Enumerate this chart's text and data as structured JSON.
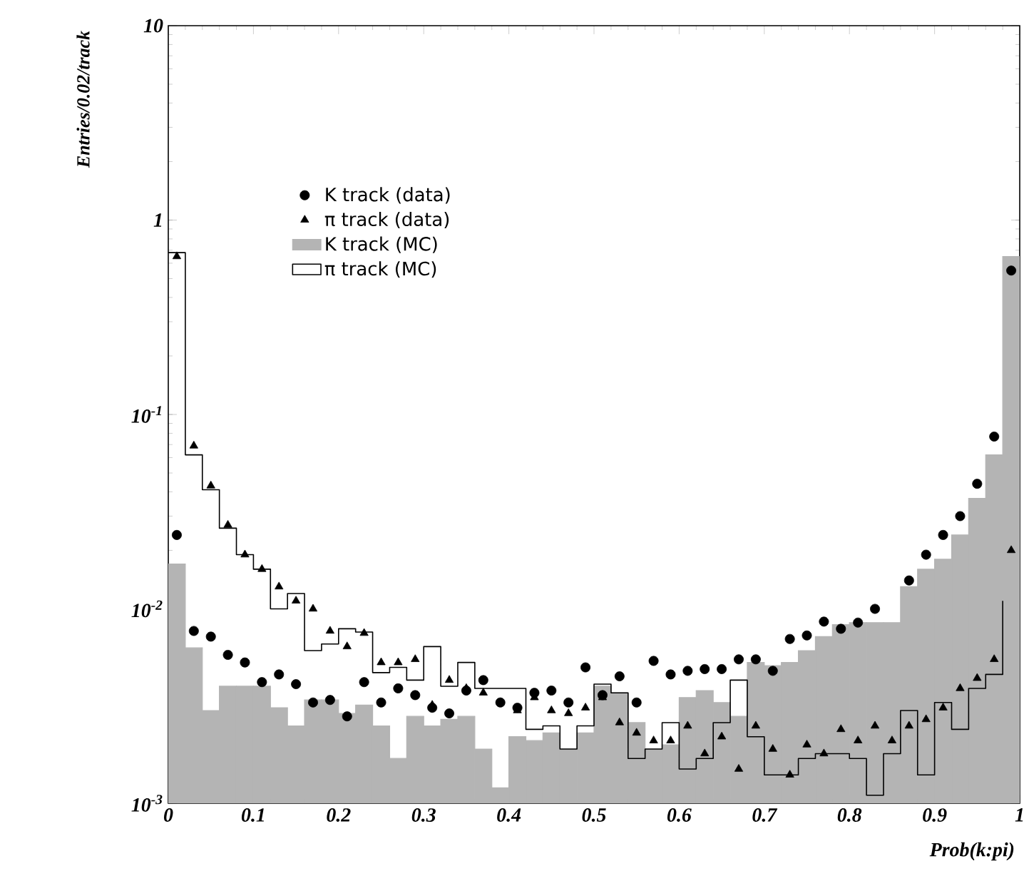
{
  "chart_data": {
    "type": "histogram",
    "xlabel": "Prob(k:pi)",
    "ylabel": "Entries/0.02/track",
    "log": true,
    "legend": "top left",
    "grid": false,
    "xlim": [
      0,
      1
    ],
    "ylim": [
      0.001,
      10
    ],
    "xticks": [
      0,
      0.1,
      0.2,
      0.3,
      0.4,
      0.5,
      0.6,
      0.7,
      0.8,
      0.9,
      1
    ],
    "yticks": [
      {
        "value": 0.001,
        "label": "10$^{-3}$"
      },
      {
        "value": 0.01,
        "label": "10$^{-2}$"
      },
      {
        "value": 0.1,
        "label": "10$^{-1}$"
      },
      1,
      10
    ],
    "bins": [
      0,
      0.02,
      0.04,
      0.06,
      0.08,
      0.1,
      0.12,
      0.14,
      0.16,
      0.18,
      0.2,
      0.22,
      0.24,
      0.26,
      0.28,
      0.3,
      0.32,
      0.34,
      0.36,
      0.38,
      0.4,
      0.42,
      0.44,
      0.46,
      0.48,
      0.5,
      0.52,
      0.54,
      0.56,
      0.58,
      0.6,
      0.62,
      0.64,
      0.66,
      0.68,
      0.7,
      0.72,
      0.74,
      0.76,
      0.78,
      0.8,
      0.82,
      0.84,
      0.86,
      0.88,
      0.9,
      0.92,
      0.94,
      0.96,
      0.98,
      1
    ],
    "series": [
      {
        "name": "K track (data)",
        "type": "scatter",
        "marker": "circle",
        "color": "#000000",
        "x": [
          0.01,
          0.03,
          0.05,
          0.07,
          0.09,
          0.11,
          0.13,
          0.15,
          0.17,
          0.19,
          0.21,
          0.23,
          0.25,
          0.27,
          0.29,
          0.31,
          0.33,
          0.35,
          0.37,
          0.39,
          0.41,
          0.43,
          0.45,
          0.47,
          0.49,
          0.51,
          0.53,
          0.55,
          0.57,
          0.59,
          0.61,
          0.63,
          0.65,
          0.67,
          0.69,
          0.71,
          0.73,
          0.75,
          0.77,
          0.79,
          0.81,
          0.83,
          0.85,
          0.87,
          0.89,
          0.91,
          0.93,
          0.95,
          0.97,
          0.99
        ],
        "values": [
          0.024,
          0.0077,
          0.0072,
          0.0058,
          0.0053,
          0.0042,
          0.0046,
          0.0041,
          0.0033,
          0.0034,
          0.0028,
          0.0042,
          0.0033,
          0.0039,
          0.0036,
          0.0031,
          0.0029,
          0.0038,
          0.0043,
          0.0033,
          0.0031,
          0.0037,
          0.0038,
          0.0033,
          0.005,
          0.0036,
          0.0045,
          0.0033,
          0.0054,
          0.0046,
          0.0048,
          0.0049,
          0.0049,
          0.0055,
          0.0055,
          0.0048,
          0.007,
          0.0073,
          0.0086,
          0.0079,
          0.0085,
          0.01,
          null,
          0.014,
          0.019,
          0.024,
          0.03,
          0.044,
          0.077,
          0.55
        ]
      },
      {
        "name": "π track (data)",
        "type": "scatter",
        "marker": "triangle",
        "color": "#000000",
        "x": [
          0.01,
          0.03,
          0.05,
          0.07,
          0.09,
          0.11,
          0.13,
          0.15,
          0.17,
          0.19,
          0.21,
          0.23,
          0.25,
          0.27,
          0.29,
          0.31,
          0.33,
          0.35,
          0.37,
          0.39,
          0.41,
          0.43,
          0.45,
          0.47,
          0.49,
          0.51,
          0.53,
          0.55,
          0.57,
          0.59,
          0.61,
          0.63,
          0.65,
          0.67,
          0.69,
          0.71,
          0.73,
          0.75,
          0.77,
          0.79,
          0.81,
          0.83,
          0.85,
          0.87,
          0.89,
          0.91,
          0.93,
          0.95,
          0.97,
          0.99
        ],
        "values": [
          0.65,
          0.069,
          0.043,
          0.027,
          0.019,
          0.016,
          0.013,
          0.011,
          0.01,
          0.0077,
          0.0064,
          0.0075,
          0.0053,
          0.0053,
          0.0055,
          0.0032,
          0.0043,
          0.0039,
          0.0037,
          0.0033,
          0.003,
          0.0035,
          0.003,
          0.0029,
          0.0031,
          0.0035,
          0.0026,
          0.0023,
          0.0021,
          0.0021,
          0.0025,
          0.0018,
          0.0022,
          0.0015,
          0.0025,
          0.0019,
          0.0014,
          0.002,
          0.0018,
          0.0024,
          0.0021,
          0.0025,
          0.0021,
          0.0025,
          0.0027,
          0.0031,
          0.0039,
          0.0044,
          0.0055,
          0.02
        ]
      },
      {
        "name": "K track (MC)",
        "color": "#b4b4b4",
        "values": [
          0.017,
          0.0063,
          0.003,
          0.004,
          0.004,
          0.004,
          0.0031,
          0.0025,
          0.0034,
          0.0034,
          0.0029,
          0.0032,
          0.0025,
          0.0017,
          0.0028,
          0.0025,
          0.0027,
          0.0028,
          0.0019,
          0.0012,
          0.0022,
          0.0021,
          0.0023,
          0.0019,
          0.0023,
          0.004,
          0.0037,
          0.0026,
          0.0019,
          0.002,
          0.0035,
          0.0038,
          0.0033,
          0.0028,
          0.0053,
          0.0051,
          0.0053,
          0.0061,
          0.0072,
          0.0083,
          0.0085,
          0.0085,
          0.0085,
          0.013,
          0.016,
          0.018,
          0.024,
          0.037,
          0.062,
          0.65
        ]
      },
      {
        "name": "π track (MC)",
        "type": "step",
        "color": "#000000",
        "x": [
          0,
          0.02,
          0.04,
          0.06,
          0.08,
          0.1,
          0.12,
          0.14,
          0.16,
          0.18,
          0.2,
          0.22,
          0.24,
          0.26,
          0.28,
          0.3,
          0.32,
          0.34,
          0.36,
          0.38,
          0.4,
          0.42,
          0.44,
          0.46,
          0.48,
          0.5,
          0.52,
          0.54,
          0.56,
          0.58,
          0.6,
          0.62,
          0.64,
          0.66,
          0.68,
          0.7,
          0.72,
          0.74,
          0.76,
          0.78,
          0.8,
          0.82,
          0.84,
          0.86,
          0.88,
          0.9,
          0.92,
          0.94,
          0.96,
          0.98
        ],
        "values": [
          0.68,
          0.062,
          0.041,
          0.026,
          0.019,
          0.016,
          0.01,
          0.012,
          0.0061,
          0.0066,
          0.0079,
          0.0076,
          0.0047,
          0.005,
          0.0043,
          0.0064,
          0.004,
          0.0053,
          0.0039,
          0.0039,
          0.0039,
          0.0024,
          0.0025,
          0.0019,
          0.0025,
          0.0041,
          0.0037,
          0.0017,
          0.0019,
          0.0026,
          0.0015,
          0.0017,
          0.0026,
          0.0043,
          0.0022,
          0.0014,
          0.0014,
          0.0017,
          0.0018,
          0.0018,
          0.0017,
          0.0011,
          0.0018,
          0.003,
          0.0014,
          0.0033,
          0.0024,
          0.0039,
          0.0046,
          0.011
        ]
      }
    ]
  }
}
